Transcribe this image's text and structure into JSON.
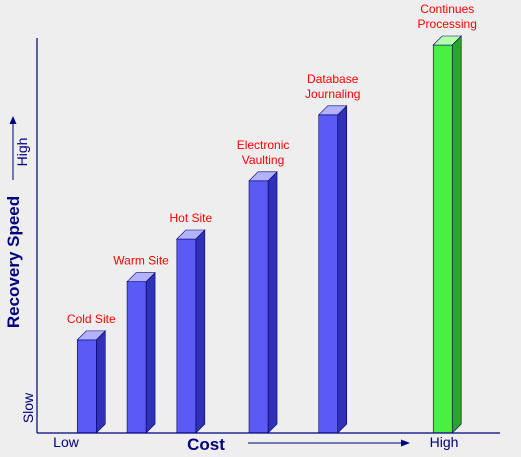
{
  "chart_data": {
    "type": "bar",
    "categories": [
      "Cold Site",
      "Warm Site",
      "Hot Site",
      "Electronic Vaulting",
      "Database Journaling",
      "Continues Processing"
    ],
    "category_lines": [
      [
        "Cold Site"
      ],
      [
        "Warm Site"
      ],
      [
        "Hot Site"
      ],
      [
        "Electronic",
        "Vaulting"
      ],
      [
        "Database",
        "Journaling"
      ],
      [
        "Continues",
        "Processing"
      ]
    ],
    "values": [
      24,
      39,
      50,
      65,
      82,
      100
    ],
    "x_positions": [
      1,
      2,
      3,
      4.45,
      5.85,
      8.15
    ],
    "ylim": [
      0,
      100
    ],
    "xlim": [
      0,
      9.2
    ],
    "xlabel": "Cost",
    "ylabel": "Recovery Speed",
    "x_low_label": "Low",
    "x_high_label": "High",
    "y_low_label": "Slow",
    "y_high_label": "High",
    "colors": {
      "bar_face": "#5a5af5",
      "bar_side": "#3131b8",
      "bar_top": "#b2b2ff",
      "bar_edge": "#000066",
      "highlight_face": "#49f041",
      "highlight_side": "#2aa52a",
      "highlight_top": "#b5ffb0",
      "axis": "#000080",
      "label": "#ff0000",
      "background": "#eeeeee"
    },
    "highlight_index": 5,
    "grid": false,
    "legend": "none"
  }
}
